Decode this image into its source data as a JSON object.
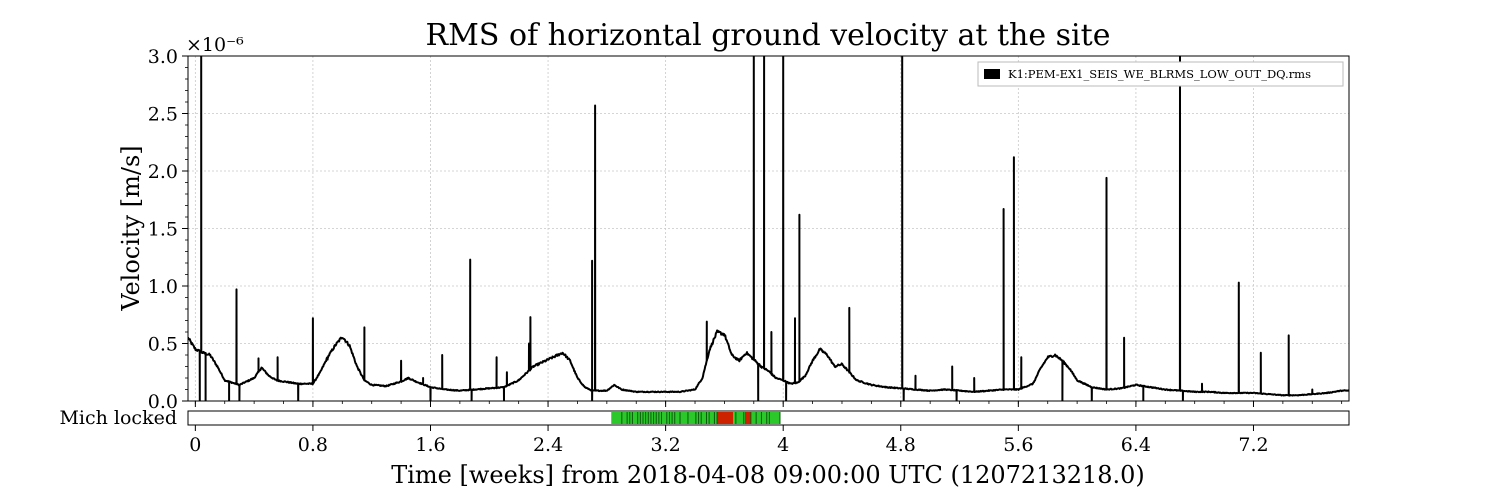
{
  "chart_data": {
    "type": "line",
    "title": "RMS of horizontal ground velocity at the site",
    "xlabel": "Time [weeks] from 2018-04-08 09:00:00 UTC (1207213218.0)",
    "ylabel": "Velocity [m/s]",
    "y_multiplier": "×10⁻⁶",
    "xlim": [
      -0.05,
      7.85
    ],
    "ylim": [
      0,
      3.0
    ],
    "x_ticks": [
      0,
      0.8,
      1.6,
      2.4,
      3.2,
      4,
      4.8,
      5.6,
      6.4,
      7.2
    ],
    "x_tick_labels": [
      "0",
      "0.8",
      "1.6",
      "2.4",
      "3.2",
      "4",
      "4.8",
      "5.6",
      "6.4",
      "7.2"
    ],
    "y_ticks": [
      0,
      0.5,
      1.0,
      1.5,
      2.0,
      2.5,
      3.0
    ],
    "y_tick_labels": [
      "0.0",
      "0.5",
      "1.0",
      "1.5",
      "2.0",
      "2.5",
      "3.0"
    ],
    "grid": true,
    "legend_position": "top-right",
    "series": [
      {
        "name": "K1:PEM-EX1_SEIS_WE_BLRMS_LOW_OUT_DQ.rms",
        "color": "#000000",
        "baseline": [
          [
            -0.05,
            0.55
          ],
          [
            0.0,
            0.45
          ],
          [
            0.05,
            0.42
          ],
          [
            0.1,
            0.4
          ],
          [
            0.15,
            0.3
          ],
          [
            0.2,
            0.18
          ],
          [
            0.3,
            0.14
          ],
          [
            0.4,
            0.2
          ],
          [
            0.45,
            0.29
          ],
          [
            0.5,
            0.22
          ],
          [
            0.55,
            0.18
          ],
          [
            0.6,
            0.17
          ],
          [
            0.7,
            0.15
          ],
          [
            0.8,
            0.15
          ],
          [
            0.85,
            0.25
          ],
          [
            0.9,
            0.38
          ],
          [
            0.95,
            0.48
          ],
          [
            1.0,
            0.56
          ],
          [
            1.05,
            0.48
          ],
          [
            1.1,
            0.3
          ],
          [
            1.15,
            0.18
          ],
          [
            1.2,
            0.14
          ],
          [
            1.3,
            0.13
          ],
          [
            1.4,
            0.17
          ],
          [
            1.45,
            0.2
          ],
          [
            1.5,
            0.17
          ],
          [
            1.6,
            0.12
          ],
          [
            1.7,
            0.1
          ],
          [
            1.8,
            0.09
          ],
          [
            1.9,
            0.1
          ],
          [
            2.0,
            0.11
          ],
          [
            2.1,
            0.12
          ],
          [
            2.2,
            0.18
          ],
          [
            2.3,
            0.3
          ],
          [
            2.4,
            0.36
          ],
          [
            2.5,
            0.42
          ],
          [
            2.55,
            0.35
          ],
          [
            2.6,
            0.2
          ],
          [
            2.65,
            0.12
          ],
          [
            2.7,
            0.09
          ],
          [
            2.8,
            0.09
          ],
          [
            2.85,
            0.14
          ],
          [
            2.9,
            0.1
          ],
          [
            3.0,
            0.08
          ],
          [
            3.2,
            0.08
          ],
          [
            3.3,
            0.08
          ],
          [
            3.4,
            0.1
          ],
          [
            3.45,
            0.2
          ],
          [
            3.5,
            0.45
          ],
          [
            3.55,
            0.6
          ],
          [
            3.6,
            0.58
          ],
          [
            3.65,
            0.4
          ],
          [
            3.7,
            0.35
          ],
          [
            3.75,
            0.42
          ],
          [
            3.8,
            0.36
          ],
          [
            3.85,
            0.3
          ],
          [
            3.9,
            0.26
          ],
          [
            3.95,
            0.2
          ],
          [
            4.0,
            0.18
          ],
          [
            4.05,
            0.15
          ],
          [
            4.1,
            0.16
          ],
          [
            4.15,
            0.22
          ],
          [
            4.2,
            0.35
          ],
          [
            4.25,
            0.45
          ],
          [
            4.3,
            0.4
          ],
          [
            4.35,
            0.3
          ],
          [
            4.4,
            0.32
          ],
          [
            4.45,
            0.25
          ],
          [
            4.5,
            0.18
          ],
          [
            4.6,
            0.14
          ],
          [
            4.7,
            0.12
          ],
          [
            4.8,
            0.11
          ],
          [
            4.9,
            0.1
          ],
          [
            5.0,
            0.09
          ],
          [
            5.1,
            0.1
          ],
          [
            5.2,
            0.09
          ],
          [
            5.3,
            0.08
          ],
          [
            5.4,
            0.09
          ],
          [
            5.5,
            0.1
          ],
          [
            5.6,
            0.1
          ],
          [
            5.7,
            0.15
          ],
          [
            5.75,
            0.28
          ],
          [
            5.8,
            0.38
          ],
          [
            5.85,
            0.4
          ],
          [
            5.9,
            0.35
          ],
          [
            5.95,
            0.28
          ],
          [
            6.0,
            0.18
          ],
          [
            6.1,
            0.12
          ],
          [
            6.2,
            0.1
          ],
          [
            6.3,
            0.11
          ],
          [
            6.4,
            0.14
          ],
          [
            6.5,
            0.12
          ],
          [
            6.6,
            0.1
          ],
          [
            6.7,
            0.09
          ],
          [
            6.8,
            0.08
          ],
          [
            6.9,
            0.08
          ],
          [
            7.0,
            0.07
          ],
          [
            7.1,
            0.07
          ],
          [
            7.2,
            0.07
          ],
          [
            7.3,
            0.06
          ],
          [
            7.4,
            0.05
          ],
          [
            7.5,
            0.05
          ],
          [
            7.6,
            0.06
          ],
          [
            7.7,
            0.07
          ],
          [
            7.8,
            0.09
          ],
          [
            7.85,
            0.09
          ]
        ],
        "spikes": [
          [
            0.04,
            3.0
          ],
          [
            0.28,
            0.97
          ],
          [
            0.43,
            0.37
          ],
          [
            0.56,
            0.38
          ],
          [
            0.8,
            0.72
          ],
          [
            0.9,
            0.36
          ],
          [
            1.15,
            0.64
          ],
          [
            1.4,
            0.35
          ],
          [
            1.55,
            0.2
          ],
          [
            1.68,
            0.4
          ],
          [
            1.87,
            1.23
          ],
          [
            2.05,
            0.38
          ],
          [
            2.12,
            0.25
          ],
          [
            2.28,
            0.73
          ],
          [
            2.27,
            0.5
          ],
          [
            2.7,
            1.22
          ],
          [
            2.72,
            2.57
          ],
          [
            3.48,
            0.69
          ],
          [
            3.8,
            3.0
          ],
          [
            3.87,
            3.0
          ],
          [
            3.92,
            0.6
          ],
          [
            4.0,
            3.0
          ],
          [
            4.08,
            0.72
          ],
          [
            4.11,
            1.62
          ],
          [
            4.45,
            0.81
          ],
          [
            4.81,
            3.0
          ],
          [
            5.5,
            1.67
          ],
          [
            5.57,
            2.12
          ],
          [
            5.62,
            0.38
          ],
          [
            6.2,
            1.94
          ],
          [
            6.32,
            0.55
          ],
          [
            6.7,
            3.0
          ],
          [
            7.1,
            1.03
          ],
          [
            7.25,
            0.42
          ],
          [
            7.44,
            0.57
          ],
          [
            5.15,
            0.3
          ],
          [
            5.3,
            0.2
          ],
          [
            4.9,
            0.22
          ],
          [
            6.85,
            0.15
          ],
          [
            7.6,
            0.1
          ]
        ],
        "dips": [
          0.03,
          0.07,
          0.23,
          0.3,
          0.7,
          1.6,
          1.88,
          2.1,
          2.7,
          3.83,
          4.02,
          4.82,
          5.18,
          5.9,
          6.1,
          6.45,
          6.72
        ]
      }
    ],
    "state_bar": {
      "label": "Mich locked",
      "segments": [
        {
          "start": 2.83,
          "end": 3.55,
          "state": "locked"
        },
        {
          "start": 3.55,
          "end": 3.66,
          "state": "unlocked"
        },
        {
          "start": 3.66,
          "end": 3.74,
          "state": "locked"
        },
        {
          "start": 3.74,
          "end": 3.78,
          "state": "unlocked"
        },
        {
          "start": 3.78,
          "end": 3.98,
          "state": "locked"
        }
      ],
      "colors": {
        "locked": "#2bc72b",
        "unlocked": "#cc2200",
        "tick": "#0a5c0a"
      }
    }
  }
}
